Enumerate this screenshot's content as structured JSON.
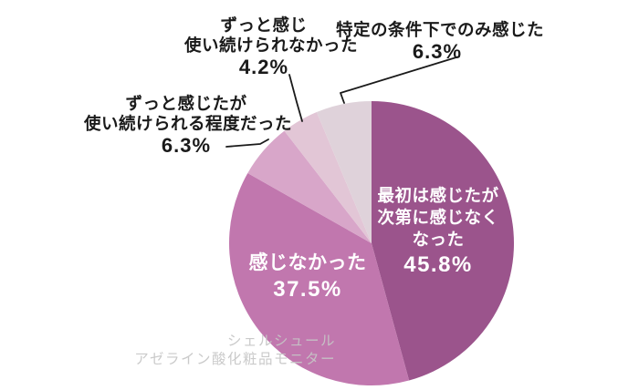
{
  "chart_data": {
    "type": "pie",
    "title": "",
    "unit": "%",
    "direction": "clockwise",
    "start_angle_deg": 0,
    "legend": "none",
    "labels": [
      "最初は感じたが次第に感じなくなった",
      "感じなかった",
      "ずっと感じたが使い続けられる程度だった",
      "ずっと感じ使い続けられなかった",
      "特定の条件下でのみ感じた"
    ],
    "values": [
      45.8,
      37.5,
      6.3,
      4.2,
      6.3
    ],
    "colors": [
      "#9B548C",
      "#C177AE",
      "#D8A6C9",
      "#E2C6D6",
      "#DFD2DA"
    ]
  },
  "callouts": {
    "slice1": {
      "lines": [
        "最初は感じたが",
        "次第に感じなく",
        "なった"
      ],
      "pct": "45.8%"
    },
    "slice2": {
      "lines": [
        "感じなかった"
      ],
      "pct": "37.5%"
    },
    "slice3": {
      "lines": [
        "ずっと感じたが",
        "使い続けられる程度だった"
      ],
      "pct": "6.3%"
    },
    "slice4": {
      "lines": [
        "ずっと感じ",
        "使い続けられなかった"
      ],
      "pct": "4.2%"
    },
    "slice5": {
      "lines": [
        "特定の条件下でのみ感じた"
      ],
      "pct": "6.3%"
    }
  },
  "watermark": {
    "line1": "シェルシュール",
    "line2": "アゼライン酸化粧品モニター"
  },
  "style": {
    "text_color": "#1a1a1a",
    "inner_label_color": "#ffffff",
    "leader_line_color": "#1a1a1a",
    "background": "#ffffff"
  }
}
